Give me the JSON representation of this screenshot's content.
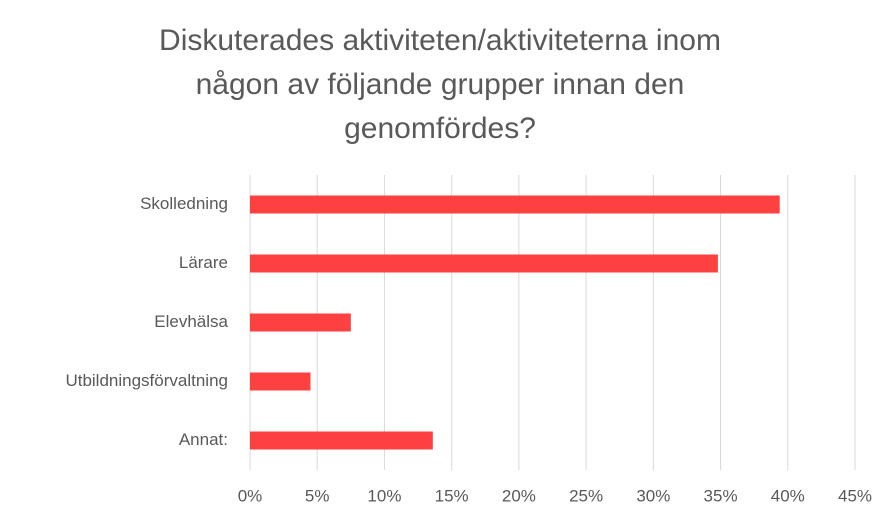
{
  "chart_data": {
    "type": "bar",
    "orientation": "horizontal",
    "title": [
      "Diskuterades aktiviteten/aktiviteterna inom",
      "någon av följande grupper innan den",
      "genomfördes?"
    ],
    "categories": [
      "Skolledning",
      "Lärare",
      "Elevhälsa",
      "Utbildningsförvaltning",
      "Annat:"
    ],
    "values": [
      39.4,
      34.8,
      7.5,
      4.5,
      13.6
    ],
    "color": "#fd4040",
    "xlim": [
      0,
      45
    ],
    "xticks": [
      {
        "value": 0,
        "label": "0%"
      },
      {
        "value": 5,
        "label": "5%"
      },
      {
        "value": 10,
        "label": "10%"
      },
      {
        "value": 15,
        "label": "15%"
      },
      {
        "value": 20,
        "label": "20%"
      },
      {
        "value": 25,
        "label": "25%"
      },
      {
        "value": 30,
        "label": "30%"
      },
      {
        "value": 35,
        "label": "35%"
      },
      {
        "value": 40,
        "label": "40%"
      },
      {
        "value": 45,
        "label": "45%"
      }
    ],
    "grid": true
  }
}
